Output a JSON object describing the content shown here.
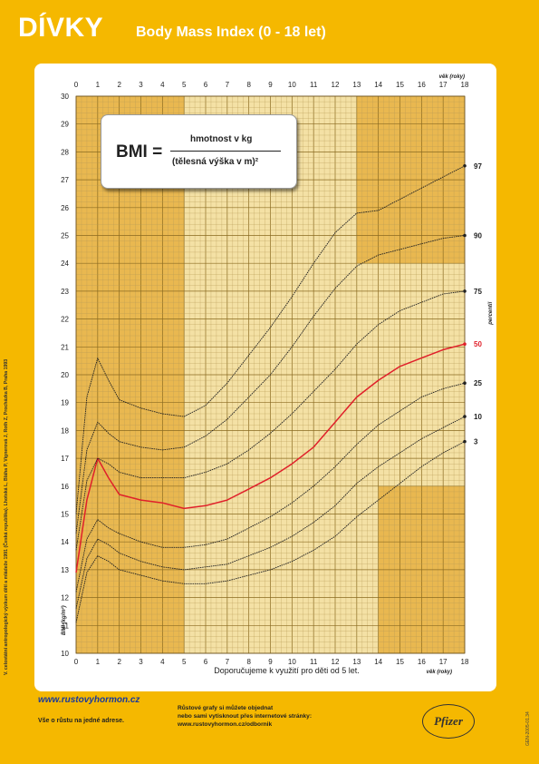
{
  "header": {
    "title": "DÍVKY",
    "subtitle": "Body Mass Index (0 - 18 let)"
  },
  "formula": {
    "lhs": "BMI =",
    "numerator": "hmotnost v kg",
    "denominator": "(tělesná výška v m)²"
  },
  "side_note": "V. celostátní antropologický výzkum dětí a mládeže 1991 (Česká republika). Lhotská L, Bláha P, Vignerová J, Roth Z, Procházka B, Praha 1993",
  "footer": {
    "logo": "www.rustovyhormon.cz",
    "tagline": "Vše o růstu na jedné adrese.",
    "info_lines": [
      "Růstové grafy si můžete objednat",
      "nebo sami vytisknout přes internetové stránky:",
      "www.rustovyhormon.cz/odbornik"
    ],
    "brand": "Pfizer",
    "code": "GEN-2005-01.34"
  },
  "chart_data": {
    "type": "line",
    "xlabel_top": "věk (roky)",
    "xlabel_bottom": "věk (roky)",
    "ylabel": "BMI (kg/m²)",
    "right_axis_label": "percentil",
    "note": "Doporučujeme k využití pro děti od 5 let.",
    "xlim": [
      0,
      18
    ],
    "ylim": [
      10,
      30
    ],
    "x_ticks": [
      "0",
      "1",
      "2",
      "3",
      "4",
      "5",
      "6",
      "7",
      "8",
      "9",
      "10",
      "11",
      "12",
      "13",
      "14",
      "15",
      "16",
      "17",
      "18"
    ],
    "y_ticks": [
      "10",
      "11",
      "12",
      "13",
      "14",
      "15",
      "16",
      "17",
      "18",
      "19",
      "20",
      "21",
      "22",
      "23",
      "24",
      "25",
      "26",
      "27",
      "28",
      "29",
      "30"
    ],
    "colors": {
      "background": "#F5B800",
      "plot_shaded": "#E9B850",
      "plot_clear": "#F4E1A5",
      "highlight_curve": "#E0202A",
      "curve": "#222222"
    },
    "x": [
      0,
      0.5,
      1,
      1.5,
      2,
      3,
      4,
      5,
      6,
      7,
      8,
      9,
      10,
      11,
      12,
      13,
      14,
      15,
      16,
      17,
      18
    ],
    "series": [
      {
        "name": "3",
        "values": [
          11.1,
          12.9,
          13.5,
          13.3,
          13.0,
          12.8,
          12.6,
          12.5,
          12.5,
          12.6,
          12.8,
          13.0,
          13.3,
          13.7,
          14.2,
          14.9,
          15.5,
          16.1,
          16.7,
          17.2,
          17.6
        ]
      },
      {
        "name": "10",
        "values": [
          11.6,
          13.4,
          14.1,
          13.9,
          13.6,
          13.3,
          13.1,
          13.0,
          13.1,
          13.2,
          13.5,
          13.8,
          14.2,
          14.7,
          15.3,
          16.1,
          16.7,
          17.2,
          17.7,
          18.1,
          18.5
        ]
      },
      {
        "name": "25",
        "values": [
          12.2,
          14.1,
          14.8,
          14.5,
          14.3,
          14.0,
          13.8,
          13.8,
          13.9,
          14.1,
          14.5,
          14.9,
          15.4,
          16.0,
          16.7,
          17.5,
          18.2,
          18.7,
          19.2,
          19.5,
          19.7
        ]
      },
      {
        "name": "50",
        "values": [
          12.9,
          15.5,
          17.0,
          16.3,
          15.7,
          15.5,
          15.4,
          15.2,
          15.3,
          15.5,
          15.9,
          16.3,
          16.8,
          17.4,
          18.3,
          19.2,
          19.8,
          20.3,
          20.6,
          20.9,
          21.1
        ]
      },
      {
        "name": "75",
        "values": [
          13.7,
          16.2,
          17.0,
          16.8,
          16.5,
          16.3,
          16.3,
          16.3,
          16.5,
          16.8,
          17.3,
          17.9,
          18.6,
          19.4,
          20.2,
          21.1,
          21.8,
          22.3,
          22.6,
          22.9,
          23.0
        ]
      },
      {
        "name": "90",
        "values": [
          14.3,
          17.3,
          18.3,
          17.9,
          17.6,
          17.4,
          17.3,
          17.4,
          17.8,
          18.4,
          19.2,
          20.0,
          21.0,
          22.1,
          23.1,
          23.9,
          24.3,
          24.5,
          24.7,
          24.9,
          25.0
        ]
      },
      {
        "name": "97",
        "values": [
          15.0,
          19.2,
          20.6,
          19.8,
          19.1,
          18.8,
          18.6,
          18.5,
          18.9,
          19.7,
          20.7,
          21.7,
          22.8,
          24.0,
          25.1,
          25.8,
          25.9,
          26.3,
          26.7,
          27.1,
          27.5
        ]
      }
    ]
  }
}
